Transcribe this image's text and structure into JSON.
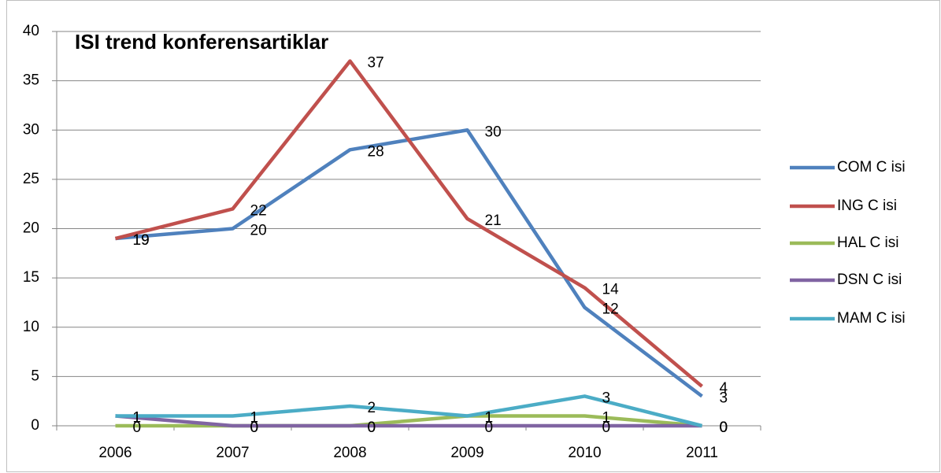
{
  "chart_data": {
    "type": "line",
    "title": "ISI trend konferensartiklar",
    "categories": [
      "2006",
      "2007",
      "2008",
      "2009",
      "2010",
      "2011"
    ],
    "series": [
      {
        "name": "COM C isi",
        "color": "#4f81bd",
        "values": [
          19,
          20,
          28,
          30,
          12,
          3
        ]
      },
      {
        "name": "ING C isi",
        "color": "#c0504d",
        "values": [
          19,
          22,
          37,
          21,
          14,
          4
        ]
      },
      {
        "name": "HAL C isi",
        "color": "#9bbb59",
        "values": [
          0,
          0,
          0,
          1,
          1,
          0
        ]
      },
      {
        "name": "DSN C isi",
        "color": "#8064a2",
        "values": [
          1,
          0,
          0,
          0,
          0,
          0
        ]
      },
      {
        "name": "MAM C isi",
        "color": "#4bacc6",
        "values": [
          1,
          1,
          2,
          1,
          3,
          0
        ]
      }
    ],
    "ylim": [
      0,
      40
    ],
    "yticks": [
      0,
      5,
      10,
      15,
      20,
      25,
      30,
      35,
      40
    ],
    "grid": true,
    "legend": "right"
  }
}
